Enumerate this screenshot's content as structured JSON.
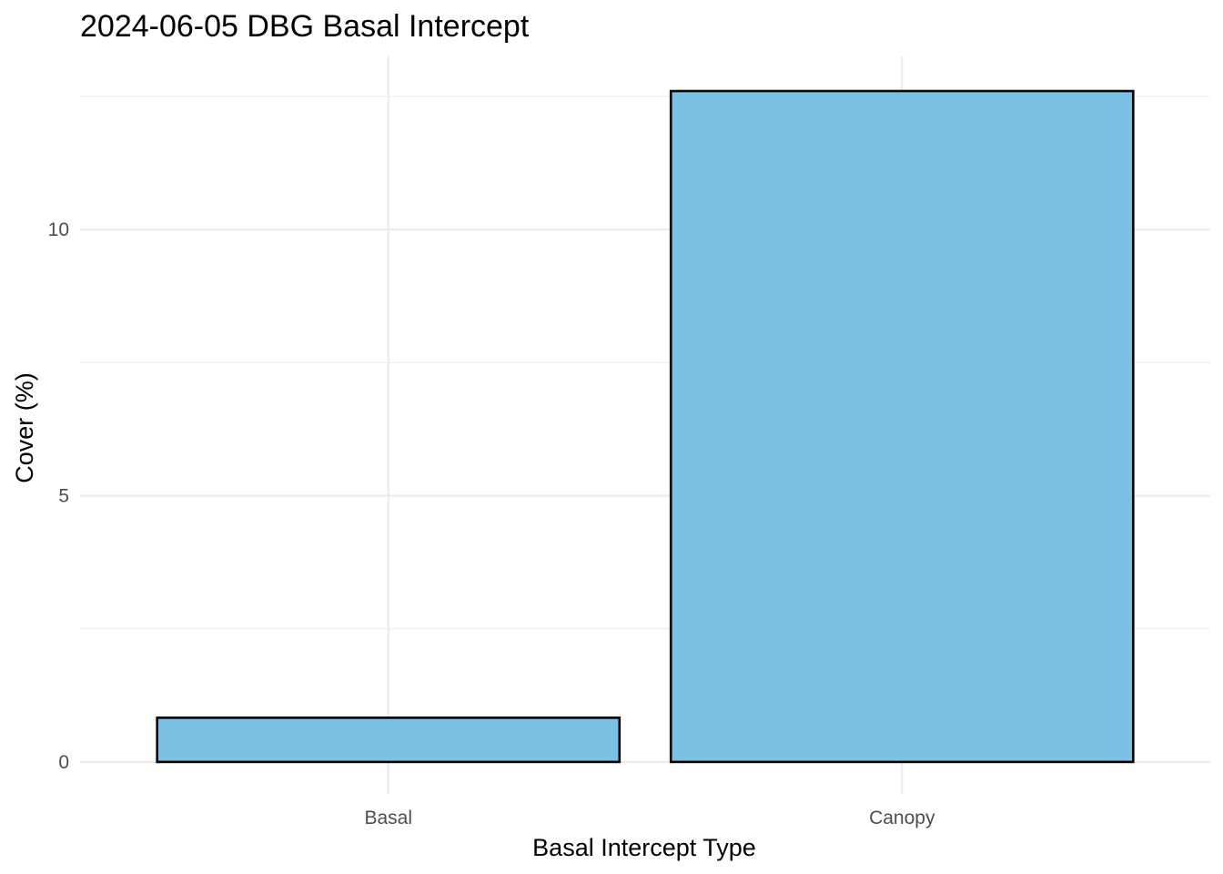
{
  "chart_data": {
    "type": "bar",
    "title": "2024-06-05 DBG Basal Intercept",
    "xlabel": "Basal Intercept Type",
    "ylabel": "Cover (%)",
    "categories": [
      "Basal",
      "Canopy"
    ],
    "values": [
      0.83,
      12.6
    ],
    "ylim": [
      -0.6,
      13.25
    ],
    "yticks": [
      0,
      5,
      10
    ],
    "ytick_labels": [
      "0",
      "5",
      "10"
    ],
    "grid": true,
    "bar_color": "#7AC1E4",
    "bar_outline_color": "#000000"
  }
}
